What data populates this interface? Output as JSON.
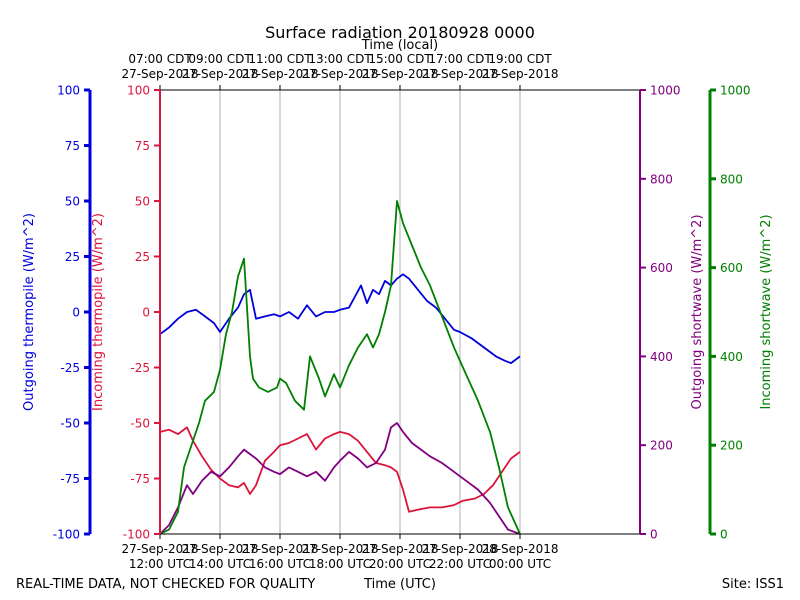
{
  "chart_data": {
    "type": "line",
    "title": "Surface radiation 20180928 0000",
    "top_axis_label": "Time (local)",
    "xlabel": "Time (UTC)",
    "footer_left": "REAL-TIME DATA, NOT CHECKED FOR QUALITY",
    "footer_right": "Site: ISS1",
    "x_hours": [
      12,
      28
    ],
    "x_ticks_bottom": [
      {
        "hour": 12,
        "line1": "27-Sep-2018",
        "line2": "12:00 UTC"
      },
      {
        "hour": 14,
        "line1": "27-Sep-2018",
        "line2": "14:00 UTC"
      },
      {
        "hour": 16,
        "line1": "27-Sep-2018",
        "line2": "16:00 UTC"
      },
      {
        "hour": 18,
        "line1": "27-Sep-2018",
        "line2": "18:00 UTC"
      },
      {
        "hour": 20,
        "line1": "27-Sep-2018",
        "line2": "20:00 UTC"
      },
      {
        "hour": 22,
        "line1": "27-Sep-2018",
        "line2": "22:00 UTC"
      },
      {
        "hour": 24,
        "line1": "28-Sep-2018",
        "line2": "00:00 UTC"
      }
    ],
    "x_ticks_top": [
      {
        "hour": 12,
        "line1": "07:00 CDT",
        "line2": "27-Sep-2018"
      },
      {
        "hour": 14,
        "line1": "09:00 CDT",
        "line2": "27-Sep-2018"
      },
      {
        "hour": 16,
        "line1": "11:00 CDT",
        "line2": "27-Sep-2018"
      },
      {
        "hour": 18,
        "line1": "13:00 CDT",
        "line2": "27-Sep-2018"
      },
      {
        "hour": 20,
        "line1": "15:00 CDT",
        "line2": "27-Sep-2018"
      },
      {
        "hour": 22,
        "line1": "17:00 CDT",
        "line2": "27-Sep-2018"
      },
      {
        "hour": 24,
        "line1": "19:00 CDT",
        "line2": "27-Sep-2018"
      }
    ],
    "axes": {
      "outgoing_thermopile": {
        "label": "Outgoing thermopile (W/m^2)",
        "color": "#0000dd",
        "ylim": [
          -100,
          100
        ],
        "ticks": [
          -100,
          -75,
          -50,
          -25,
          0,
          25,
          50,
          75,
          100
        ]
      },
      "incoming_thermopile": {
        "label": "Incoming thermopile (W/m^2)",
        "color": "#dc143c",
        "ylim": [
          -100,
          100
        ],
        "ticks": [
          -100,
          -75,
          -50,
          -25,
          0,
          25,
          50,
          75,
          100
        ]
      },
      "outgoing_shortwave": {
        "label": "Outgoing shortwave (W/m^2)",
        "color": "#800080",
        "ylim": [
          0,
          1000
        ],
        "ticks": [
          0,
          200,
          400,
          600,
          800,
          1000
        ]
      },
      "incoming_shortwave": {
        "label": "Incoming shortwave (W/m^2)",
        "color": "#008000",
        "ylim": [
          0,
          1000
        ],
        "ticks": [
          0,
          200,
          400,
          600,
          800,
          1000
        ]
      }
    },
    "series": [
      {
        "name": "Outgoing thermopile",
        "axis": "outgoing_thermopile",
        "color": "#0000dd",
        "x": [
          12.0,
          12.3,
          12.6,
          12.9,
          13.2,
          13.5,
          13.8,
          14.0,
          14.3,
          14.6,
          14.8,
          15.0,
          15.2,
          15.5,
          15.8,
          16.0,
          16.3,
          16.6,
          16.9,
          17.2,
          17.5,
          17.8,
          18.0,
          18.3,
          18.5,
          18.7,
          18.9,
          19.1,
          19.3,
          19.5,
          19.7,
          19.9,
          20.1,
          20.3,
          20.6,
          20.9,
          21.2,
          21.5,
          21.8,
          22.0,
          22.4,
          22.8,
          23.2,
          23.5,
          23.7,
          24.0
        ],
        "values": [
          -10,
          -7,
          -3,
          0,
          1,
          -2,
          -5,
          -9,
          -3,
          2,
          8,
          10,
          -3,
          -2,
          -1,
          -2,
          0,
          -3,
          3,
          -2,
          0,
          0,
          1,
          2,
          7,
          12,
          4,
          10,
          8,
          14,
          12,
          15,
          17,
          15,
          10,
          5,
          2,
          -3,
          -8,
          -9,
          -12,
          -16,
          -20,
          -22,
          -23,
          -20
        ]
      },
      {
        "name": "Incoming thermopile",
        "axis": "incoming_thermopile",
        "color": "#dc143c",
        "x": [
          12.0,
          12.3,
          12.6,
          12.9,
          13.1,
          13.4,
          13.7,
          14.0,
          14.3,
          14.6,
          14.8,
          15.0,
          15.2,
          15.5,
          15.8,
          16.0,
          16.3,
          16.6,
          16.9,
          17.2,
          17.5,
          17.8,
          18.0,
          18.3,
          18.6,
          18.9,
          19.2,
          19.5,
          19.7,
          19.9,
          20.1,
          20.3,
          20.6,
          21.0,
          21.4,
          21.8,
          22.1,
          22.5,
          22.8,
          23.1,
          23.4,
          23.7,
          24.0
        ],
        "values": [
          -54,
          -53,
          -55,
          -52,
          -58,
          -65,
          -71,
          -75,
          -78,
          -79,
          -77,
          -82,
          -78,
          -67,
          -63,
          -60,
          -59,
          -57,
          -55,
          -62,
          -57,
          -55,
          -54,
          -55,
          -58,
          -63,
          -68,
          -69,
          -70,
          -72,
          -80,
          -90,
          -89,
          -88,
          -88,
          -87,
          -85,
          -84,
          -82,
          -78,
          -72,
          -66,
          -63
        ]
      },
      {
        "name": "Outgoing shortwave",
        "axis": "outgoing_shortwave",
        "color": "#800080",
        "x": [
          12.0,
          12.3,
          12.6,
          12.9,
          13.1,
          13.4,
          13.7,
          14.0,
          14.3,
          14.6,
          14.8,
          15.0,
          15.2,
          15.5,
          15.8,
          16.0,
          16.3,
          16.6,
          16.9,
          17.2,
          17.5,
          17.8,
          18.0,
          18.3,
          18.6,
          18.9,
          19.2,
          19.5,
          19.7,
          19.9,
          20.1,
          20.4,
          20.7,
          21.0,
          21.4,
          21.8,
          22.2,
          22.6,
          23.0,
          23.3,
          23.6,
          24.0
        ],
        "values": [
          0,
          20,
          60,
          110,
          90,
          120,
          140,
          130,
          150,
          175,
          190,
          180,
          170,
          150,
          140,
          135,
          150,
          140,
          130,
          140,
          120,
          150,
          165,
          185,
          170,
          150,
          160,
          190,
          240,
          250,
          230,
          205,
          190,
          175,
          160,
          140,
          120,
          100,
          70,
          40,
          10,
          0
        ]
      },
      {
        "name": "Incoming shortwave",
        "axis": "incoming_shortwave",
        "color": "#008000",
        "x": [
          12.0,
          12.3,
          12.6,
          12.8,
          13.0,
          13.3,
          13.5,
          13.8,
          14.0,
          14.2,
          14.4,
          14.6,
          14.8,
          15.0,
          15.1,
          15.3,
          15.6,
          15.9,
          16.0,
          16.2,
          16.5,
          16.8,
          17.0,
          17.3,
          17.5,
          17.8,
          18.0,
          18.3,
          18.6,
          18.9,
          19.1,
          19.3,
          19.5,
          19.7,
          19.9,
          20.1,
          20.4,
          20.7,
          21.0,
          21.4,
          21.8,
          22.2,
          22.6,
          23.0,
          23.3,
          23.6,
          24.0
        ],
        "values": [
          0,
          10,
          50,
          150,
          190,
          250,
          300,
          320,
          370,
          450,
          500,
          580,
          620,
          400,
          350,
          330,
          320,
          330,
          350,
          340,
          300,
          280,
          400,
          350,
          310,
          360,
          330,
          380,
          420,
          450,
          420,
          450,
          500,
          560,
          750,
          700,
          650,
          600,
          560,
          490,
          420,
          360,
          300,
          230,
          150,
          60,
          0
        ]
      }
    ]
  }
}
